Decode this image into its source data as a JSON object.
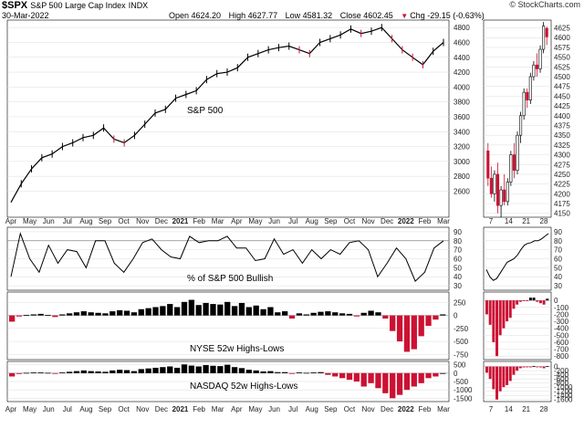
{
  "header": {
    "symbol": "$SPX",
    "description": "S&P 500 Large Cap Index",
    "exchange": "INDX",
    "date": "30-Mar-2022",
    "brand": "© StockCharts.com",
    "open": "Open 4624.20",
    "high": "High 4627.77",
    "low": "Low 4581.32",
    "close": "Close 4602.45",
    "chg": "Chg -29.15 (-0.63%)",
    "chg_icon": "down-triangle-icon"
  },
  "colors": {
    "up": "#000000",
    "down": "#cc1133",
    "grid": "#dddddd",
    "ref": "#888888"
  },
  "chart_data": [
    {
      "type": "line",
      "id": "main",
      "title": "S&P 500",
      "x_labels": [
        "Apr",
        "May",
        "Jun",
        "Jul",
        "Aug",
        "Sep",
        "Oct",
        "Nov",
        "Dec",
        "2021",
        "Feb",
        "Mar",
        "Apr",
        "May",
        "Jun",
        "Jul",
        "Aug",
        "Sep",
        "Oct",
        "Nov",
        "Dec",
        "2022",
        "Feb",
        "Mar"
      ],
      "y_ticks": [
        2600,
        2800,
        3000,
        3200,
        3400,
        3600,
        3800,
        4000,
        4200,
        4400,
        4600,
        4800
      ],
      "ylim": [
        2250,
        4900
      ],
      "series": [
        {
          "values": [
            2450,
            2700,
            2900,
            3050,
            3100,
            3200,
            3250,
            3320,
            3350,
            3450,
            3300,
            3250,
            3350,
            3500,
            3650,
            3700,
            3850,
            3900,
            3950,
            4100,
            4180,
            4200,
            4260,
            4400,
            4450,
            4500,
            4530,
            4550,
            4500,
            4450,
            4600,
            4650,
            4700,
            4780,
            4720,
            4750,
            4800,
            4650,
            4500,
            4400,
            4300,
            4480,
            4600
          ]
        }
      ]
    },
    {
      "type": "candlestick",
      "id": "daily",
      "x_labels": [
        "7",
        "14",
        "21",
        "28"
      ],
      "y_ticks": [
        4150,
        4175,
        4200,
        4225,
        4250,
        4275,
        4300,
        4325,
        4350,
        4375,
        4400,
        4425,
        4450,
        4475,
        4500,
        4525,
        4550,
        4575,
        4600,
        4625
      ],
      "ylim": [
        4140,
        4645
      ],
      "ohlc": [
        [
          4310,
          4330,
          4220,
          4240
        ],
        [
          4240,
          4270,
          4190,
          4200
        ],
        [
          4200,
          4260,
          4180,
          4250
        ],
        [
          4250,
          4280,
          4150,
          4170
        ],
        [
          4170,
          4220,
          4140,
          4210
        ],
        [
          4210,
          4250,
          4170,
          4180
        ],
        [
          4180,
          4240,
          4170,
          4230
        ],
        [
          4230,
          4310,
          4220,
          4300
        ],
        [
          4300,
          4330,
          4240,
          4260
        ],
        [
          4260,
          4360,
          4250,
          4350
        ],
        [
          4350,
          4410,
          4330,
          4400
        ],
        [
          4400,
          4470,
          4390,
          4460
        ],
        [
          4460,
          4470,
          4420,
          4440
        ],
        [
          4440,
          4510,
          4430,
          4500
        ],
        [
          4500,
          4540,
          4490,
          4530
        ],
        [
          4530,
          4560,
          4500,
          4520
        ],
        [
          4520,
          4580,
          4510,
          4570
        ],
        [
          4570,
          4640,
          4560,
          4630
        ],
        [
          4624,
          4628,
          4581,
          4602
        ]
      ]
    },
    {
      "type": "line",
      "id": "bullish",
      "title": "% of S&P 500 Bullish",
      "y_ticks": [
        30,
        40,
        50,
        60,
        70,
        80,
        90
      ],
      "ylim": [
        25,
        95
      ],
      "ref_line": 80,
      "series": [
        {
          "values": [
            40,
            88,
            60,
            45,
            75,
            55,
            70,
            68,
            50,
            80,
            80,
            55,
            45,
            60,
            78,
            82,
            70,
            62,
            60,
            85,
            78,
            80,
            80,
            85,
            72,
            72,
            58,
            60,
            82,
            65,
            70,
            55,
            70,
            60,
            70,
            65,
            78,
            80,
            70,
            40,
            55,
            72,
            60,
            35,
            45,
            72,
            80
          ]
        }
      ]
    },
    {
      "type": "line",
      "id": "bullish-daily",
      "y_ticks": [
        30,
        40,
        50,
        60,
        70,
        80,
        90
      ],
      "ylim": [
        25,
        95
      ],
      "series": [
        {
          "values": [
            48,
            40,
            36,
            38,
            44,
            50,
            56,
            58,
            60,
            64,
            70,
            75,
            77,
            78,
            80,
            80,
            82,
            85,
            88
          ]
        }
      ]
    },
    {
      "type": "bar",
      "id": "nyse",
      "title": "NYSE 52w Highs-Lows",
      "y_ticks": [
        250,
        0,
        -250,
        -500,
        -750
      ],
      "ylim": [
        -850,
        450
      ],
      "values": [
        -120,
        -20,
        10,
        20,
        30,
        10,
        -30,
        20,
        40,
        60,
        80,
        60,
        50,
        40,
        80,
        100,
        90,
        60,
        120,
        140,
        160,
        180,
        220,
        160,
        260,
        300,
        200,
        240,
        220,
        210,
        260,
        180,
        240,
        160,
        190,
        120,
        160,
        60,
        80,
        -60,
        40,
        20,
        50,
        70,
        80,
        60,
        40,
        30,
        -20,
        50,
        90,
        60,
        -60,
        -300,
        -500,
        -700,
        -650,
        -400,
        -200,
        -80,
        20
      ]
    },
    {
      "type": "bar",
      "id": "nyse-daily",
      "y_ticks": [
        100,
        0,
        -100,
        -200,
        -300,
        -400,
        -500,
        -600,
        -700,
        -800
      ],
      "ylim": [
        -850,
        120
      ],
      "values": [
        -200,
        -350,
        -600,
        -800,
        -500,
        -400,
        -300,
        -250,
        -120,
        -60,
        -20,
        -10,
        -5,
        40,
        40,
        -20,
        -40,
        -60,
        25
      ]
    },
    {
      "type": "bar",
      "id": "nasdaq",
      "title": "NASDAQ 52w Highs-Lows",
      "y_ticks": [
        500,
        0,
        -500,
        -1000,
        -1500
      ],
      "ylim": [
        -1700,
        700
      ],
      "values": [
        -200,
        -50,
        20,
        40,
        40,
        20,
        -40,
        40,
        80,
        120,
        160,
        120,
        100,
        80,
        160,
        200,
        180,
        120,
        240,
        280,
        320,
        360,
        400,
        320,
        520,
        450,
        400,
        480,
        440,
        420,
        500,
        360,
        300,
        200,
        160,
        100,
        120,
        60,
        60,
        -40,
        40,
        20,
        40,
        60,
        -100,
        -200,
        -300,
        -400,
        -500,
        -800,
        -600,
        -900,
        -1200,
        -1500,
        -1300,
        -1000,
        -800,
        -600,
        -300,
        -200,
        0
      ]
    },
    {
      "type": "bar",
      "id": "nasdaq-daily",
      "y_ticks": [
        200,
        0,
        -200,
        -400,
        -600,
        -800,
        -1000,
        -1200,
        -1400,
        -1600
      ],
      "ylim": [
        -1700,
        250
      ],
      "values": [
        -300,
        -600,
        -1100,
        -1600,
        -1200,
        -1000,
        -900,
        -700,
        -400,
        -200,
        -80,
        -40,
        -20,
        -10,
        30,
        -30,
        -40,
        -80,
        20
      ]
    }
  ]
}
